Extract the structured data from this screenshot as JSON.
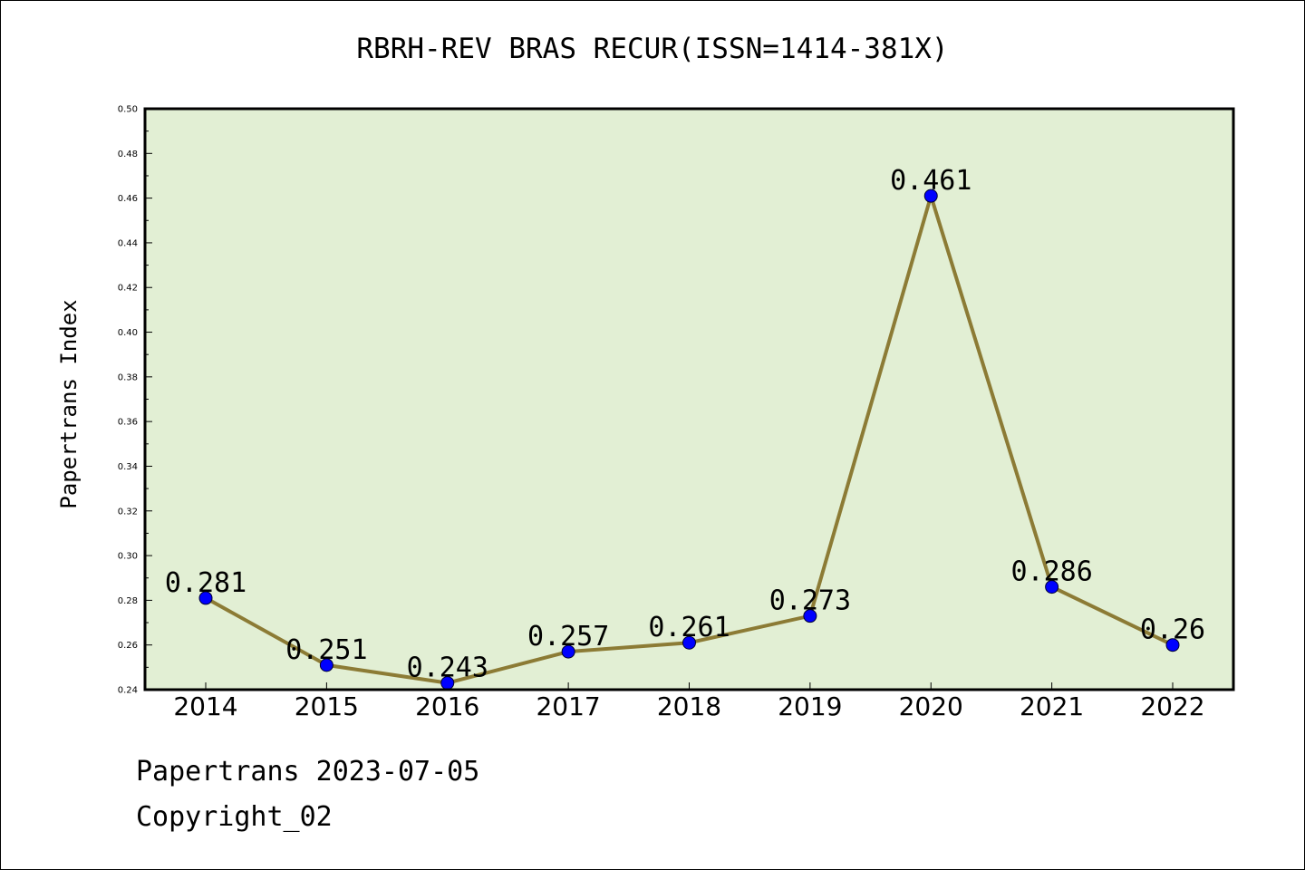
{
  "chart_data": {
    "type": "line",
    "title": "RBRH-REV BRAS RECUR(ISSN=1414-381X)",
    "xlabel": "",
    "ylabel": "Papertrans Index",
    "categories": [
      "2014",
      "2015",
      "2016",
      "2017",
      "2018",
      "2019",
      "2020",
      "2021",
      "2022"
    ],
    "series": [
      {
        "values": [
          0.281,
          0.251,
          0.243,
          0.257,
          0.261,
          0.273,
          0.461,
          0.286,
          0.26
        ],
        "labels": [
          "0.281",
          "0.251",
          "0.243",
          "0.257",
          "0.261",
          "0.273",
          "0.461",
          "0.286",
          "0.26"
        ]
      }
    ],
    "ylim": [
      0.24,
      0.5
    ],
    "yticks": [
      "0.24",
      "0.26",
      "0.28",
      "0.30",
      "0.32",
      "0.34",
      "0.36",
      "0.38",
      "0.40",
      "0.42",
      "0.44",
      "0.46",
      "0.48",
      "0.50"
    ],
    "grid": false,
    "colors": {
      "plot_background": "#e2efd4",
      "line": "#8c7b35",
      "marker": "#0000ff"
    }
  },
  "footer": {
    "line1": "Papertrans 2023-07-05",
    "line2": "Copyright_02"
  }
}
